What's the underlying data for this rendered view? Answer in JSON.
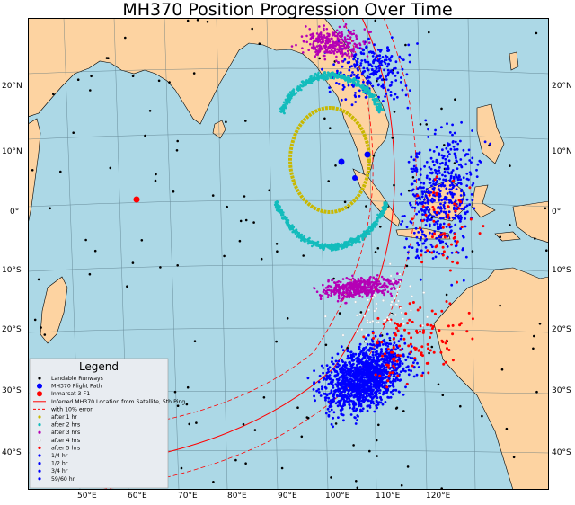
{
  "title": "MH370 Position Progression Over Time",
  "colors": {
    "ocean": "#acd8e6",
    "land": "#fdd3a1",
    "runway": "#000000",
    "flight_path": "#0000ff",
    "inmarsat": "#ff0000",
    "arc": "#ff0000",
    "after_1hr": "#c9b800",
    "after_2hrs": "#12bcbc",
    "after_3hrs": "#b500b5",
    "after_4hrs": "#ffffff",
    "after_5hrs": "#ff0000",
    "quarter_hr": "#0000ff"
  },
  "lat_labels": [
    "20°N",
    "10°N",
    "0°",
    "10°S",
    "20°S",
    "30°S",
    "40°S"
  ],
  "lon_labels": [
    "50°E",
    "60°E",
    "70°E",
    "80°E",
    "90°E",
    "100°E",
    "110°E",
    "120°E"
  ],
  "legend": {
    "title": "Legend",
    "items": [
      {
        "label": "Landable Runways",
        "symbol": "dot",
        "color": "#000000"
      },
      {
        "label": "MH370 Flight Path",
        "symbol": "bigdot",
        "color": "#0000ff"
      },
      {
        "label": "Inmarsat 3-F1",
        "symbol": "bigdot",
        "color": "#ff0000"
      },
      {
        "label": "Inferred MH370 Location from Satellite, 5th Ping",
        "symbol": "line",
        "color": "#ff0000"
      },
      {
        "label": "with 10% error",
        "symbol": "dash",
        "color": "#ff0000"
      },
      {
        "label": "after 1 hr",
        "symbol": "dot",
        "color": "#c9b800"
      },
      {
        "label": "after 2 hrs",
        "symbol": "dot",
        "color": "#12bcbc"
      },
      {
        "label": "after 3 hrs",
        "symbol": "dot",
        "color": "#b500b5"
      },
      {
        "label": "after 4 hrs",
        "symbol": "dot",
        "color": "#ffffff"
      },
      {
        "label": "after 5 hrs",
        "symbol": "dot",
        "color": "#ff0000"
      },
      {
        "label": "1/4 hr",
        "symbol": "dot",
        "color": "#0000ff"
      },
      {
        "label": "1/2 hr",
        "symbol": "dot",
        "color": "#0000ff"
      },
      {
        "label": "3/4 hr",
        "symbol": "dot",
        "color": "#0000ff"
      },
      {
        "label": "59/60 hr",
        "symbol": "dot",
        "color": "#0000ff"
      }
    ]
  }
}
